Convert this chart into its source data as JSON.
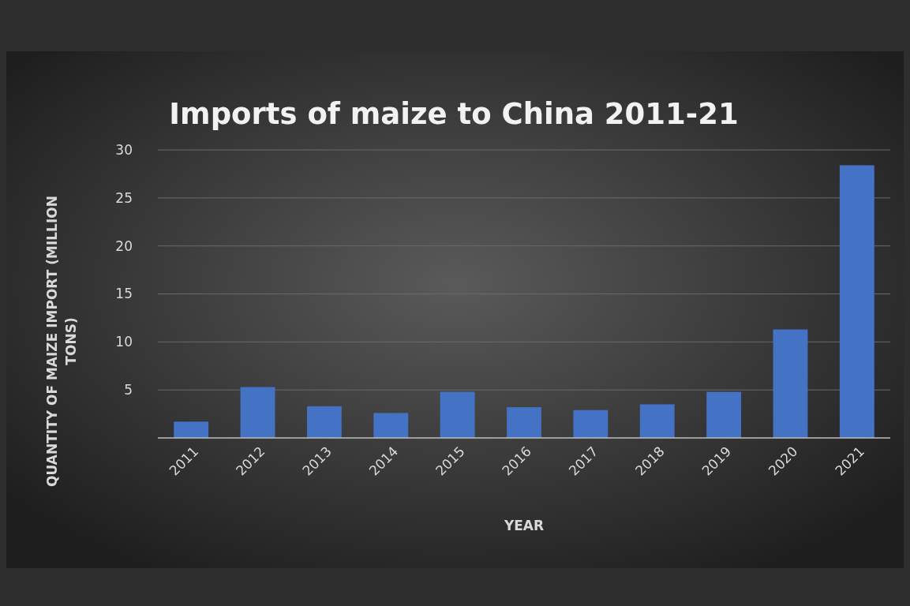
{
  "chart_data": {
    "type": "bar",
    "title": "Imports of maize to China 2011-21",
    "xlabel": "YEAR",
    "ylabel": "QUANTITY OF MAIZE IMPORT (MILLION TONS)",
    "categories": [
      "2011",
      "2012",
      "2013",
      "2014",
      "2015",
      "2016",
      "2017",
      "2018",
      "2019",
      "2020",
      "2021"
    ],
    "values": [
      1.7,
      5.3,
      3.3,
      2.6,
      4.8,
      3.2,
      2.9,
      3.5,
      4.8,
      11.3,
      28.4
    ],
    "color": "#4472c4",
    "ylim": [
      0,
      30
    ],
    "yticks": [
      5,
      10,
      15,
      20,
      25,
      30
    ],
    "grid": "y"
  }
}
